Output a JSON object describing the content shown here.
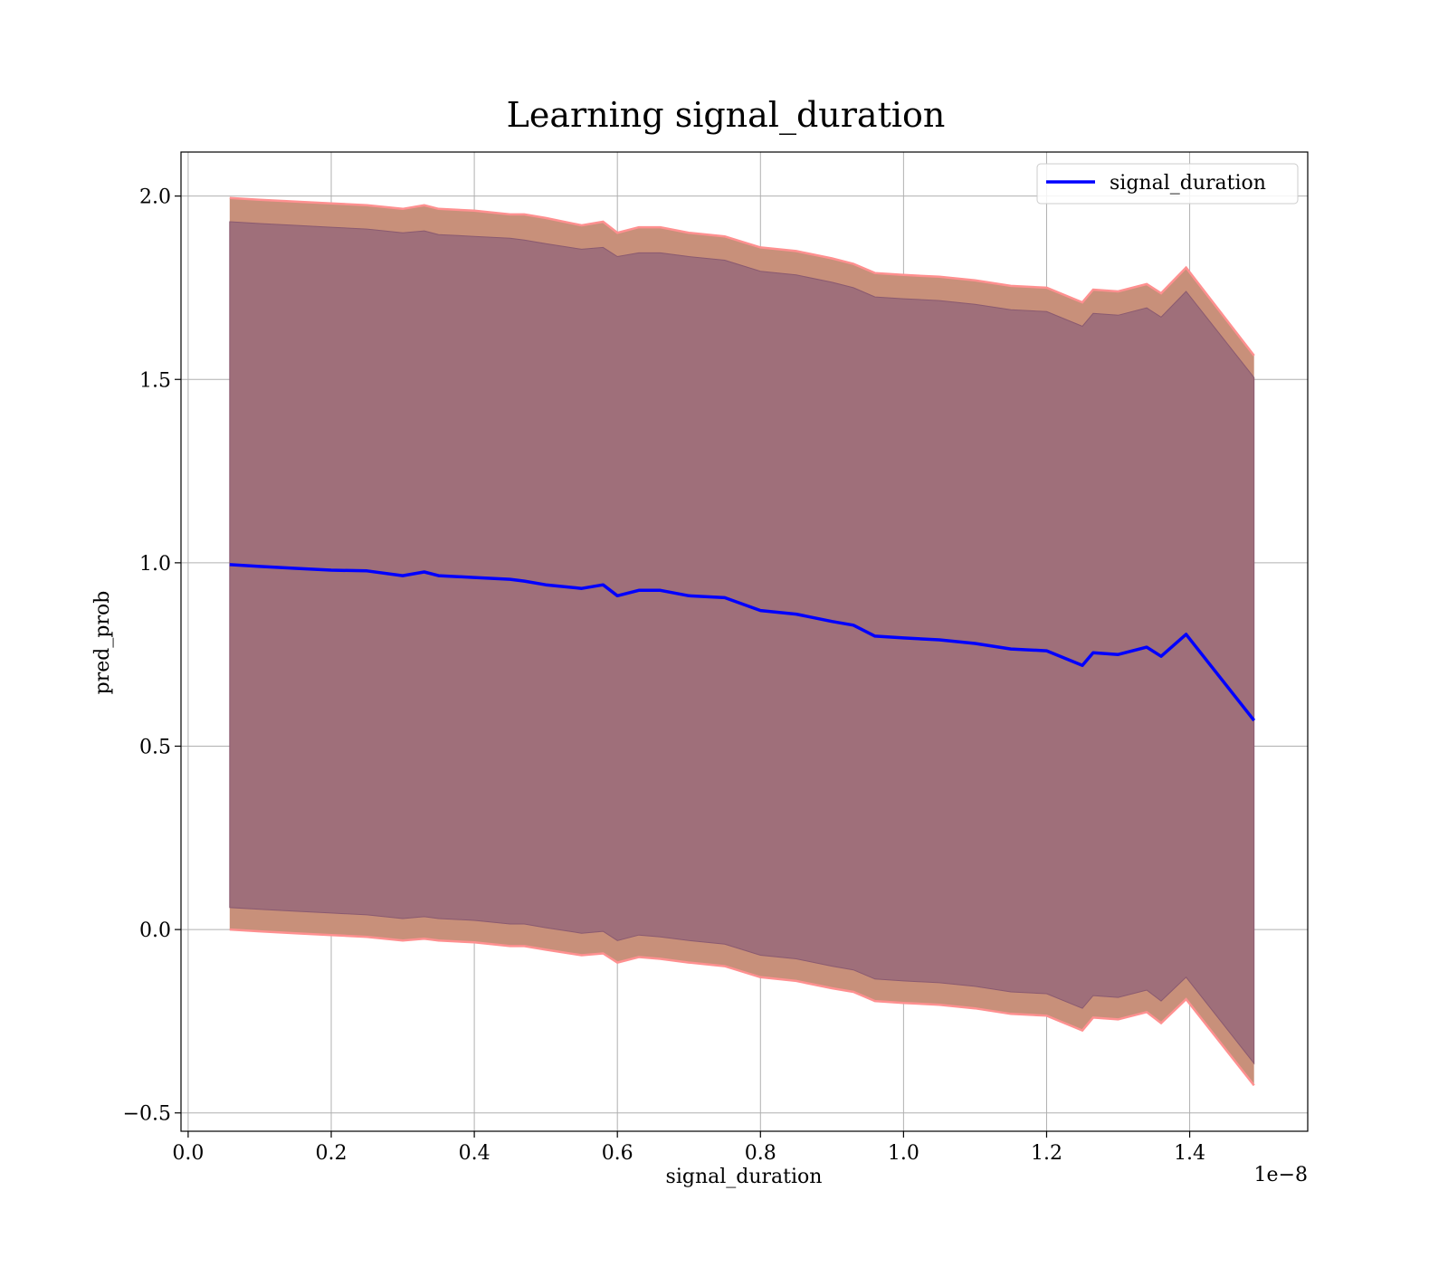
{
  "chart_data": {
    "type": "line",
    "title": "Learning signal_duration",
    "xlabel": "signal_duration",
    "ylabel": "pred_prob",
    "x_offset_text": "1e−8",
    "xlim": [
      -0.01,
      1.565
    ],
    "ylim": [
      -0.55,
      2.12
    ],
    "xticks": [
      0.0,
      0.2,
      0.4,
      0.6,
      0.8,
      1.0,
      1.2,
      1.4
    ],
    "xtick_labels": [
      "0.0",
      "0.2",
      "0.4",
      "0.6",
      "0.8",
      "1.0",
      "1.2",
      "1.4"
    ],
    "yticks": [
      -0.5,
      0.0,
      0.5,
      1.0,
      1.5,
      2.0
    ],
    "ytick_labels": [
      "−0.5",
      "0.0",
      "0.5",
      "1.0",
      "1.5",
      "2.0"
    ],
    "grid": true,
    "legend": {
      "position": "top-right",
      "entries": [
        "signal_duration"
      ]
    },
    "colors": {
      "line": "#0000ff",
      "outer_band": "#c8907a",
      "outer_edge": "#ff9090",
      "inner_band": "#9f6f7a"
    },
    "series": [
      {
        "name": "signal_duration",
        "x": [
          0.058,
          0.1,
          0.15,
          0.2,
          0.25,
          0.3,
          0.33,
          0.35,
          0.4,
          0.45,
          0.47,
          0.5,
          0.55,
          0.58,
          0.6,
          0.63,
          0.66,
          0.7,
          0.75,
          0.8,
          0.85,
          0.9,
          0.93,
          0.96,
          1.0,
          1.05,
          1.1,
          1.15,
          1.2,
          1.25,
          1.265,
          1.3,
          1.34,
          1.36,
          1.395,
          1.49
        ],
        "y": [
          0.995,
          0.99,
          0.985,
          0.98,
          0.978,
          0.965,
          0.975,
          0.965,
          0.96,
          0.955,
          0.95,
          0.94,
          0.93,
          0.94,
          0.91,
          0.925,
          0.925,
          0.91,
          0.905,
          0.87,
          0.86,
          0.84,
          0.83,
          0.8,
          0.795,
          0.79,
          0.78,
          0.765,
          0.76,
          0.72,
          0.755,
          0.75,
          0.77,
          0.745,
          0.805,
          0.57
        ]
      }
    ],
    "outer_band": {
      "upper": [
        1.995,
        1.99,
        1.985,
        1.98,
        1.975,
        1.965,
        1.975,
        1.965,
        1.96,
        1.95,
        1.95,
        1.94,
        1.92,
        1.93,
        1.9,
        1.915,
        1.915,
        1.9,
        1.89,
        1.86,
        1.85,
        1.83,
        1.815,
        1.79,
        1.785,
        1.78,
        1.77,
        1.755,
        1.75,
        1.71,
        1.745,
        1.74,
        1.76,
        1.735,
        1.805,
        1.565
      ],
      "lower": [
        0.0,
        -0.005,
        -0.01,
        -0.015,
        -0.02,
        -0.03,
        -0.025,
        -0.03,
        -0.035,
        -0.045,
        -0.045,
        -0.055,
        -0.07,
        -0.065,
        -0.09,
        -0.075,
        -0.08,
        -0.09,
        -0.1,
        -0.13,
        -0.14,
        -0.16,
        -0.17,
        -0.195,
        -0.2,
        -0.205,
        -0.215,
        -0.23,
        -0.235,
        -0.275,
        -0.24,
        -0.245,
        -0.225,
        -0.255,
        -0.19,
        -0.425
      ]
    },
    "inner_band": {
      "upper": [
        1.93,
        1.925,
        1.92,
        1.915,
        1.91,
        1.9,
        1.905,
        1.895,
        1.89,
        1.885,
        1.88,
        1.87,
        1.855,
        1.86,
        1.835,
        1.845,
        1.845,
        1.835,
        1.825,
        1.795,
        1.785,
        1.765,
        1.75,
        1.725,
        1.72,
        1.715,
        1.705,
        1.69,
        1.685,
        1.645,
        1.68,
        1.675,
        1.695,
        1.67,
        1.74,
        1.505
      ],
      "lower": [
        0.06,
        0.055,
        0.05,
        0.045,
        0.04,
        0.03,
        0.035,
        0.03,
        0.025,
        0.015,
        0.015,
        0.005,
        -0.01,
        -0.005,
        -0.03,
        -0.015,
        -0.02,
        -0.03,
        -0.04,
        -0.07,
        -0.08,
        -0.1,
        -0.11,
        -0.135,
        -0.14,
        -0.145,
        -0.155,
        -0.17,
        -0.175,
        -0.215,
        -0.18,
        -0.185,
        -0.165,
        -0.195,
        -0.13,
        -0.365
      ]
    }
  }
}
